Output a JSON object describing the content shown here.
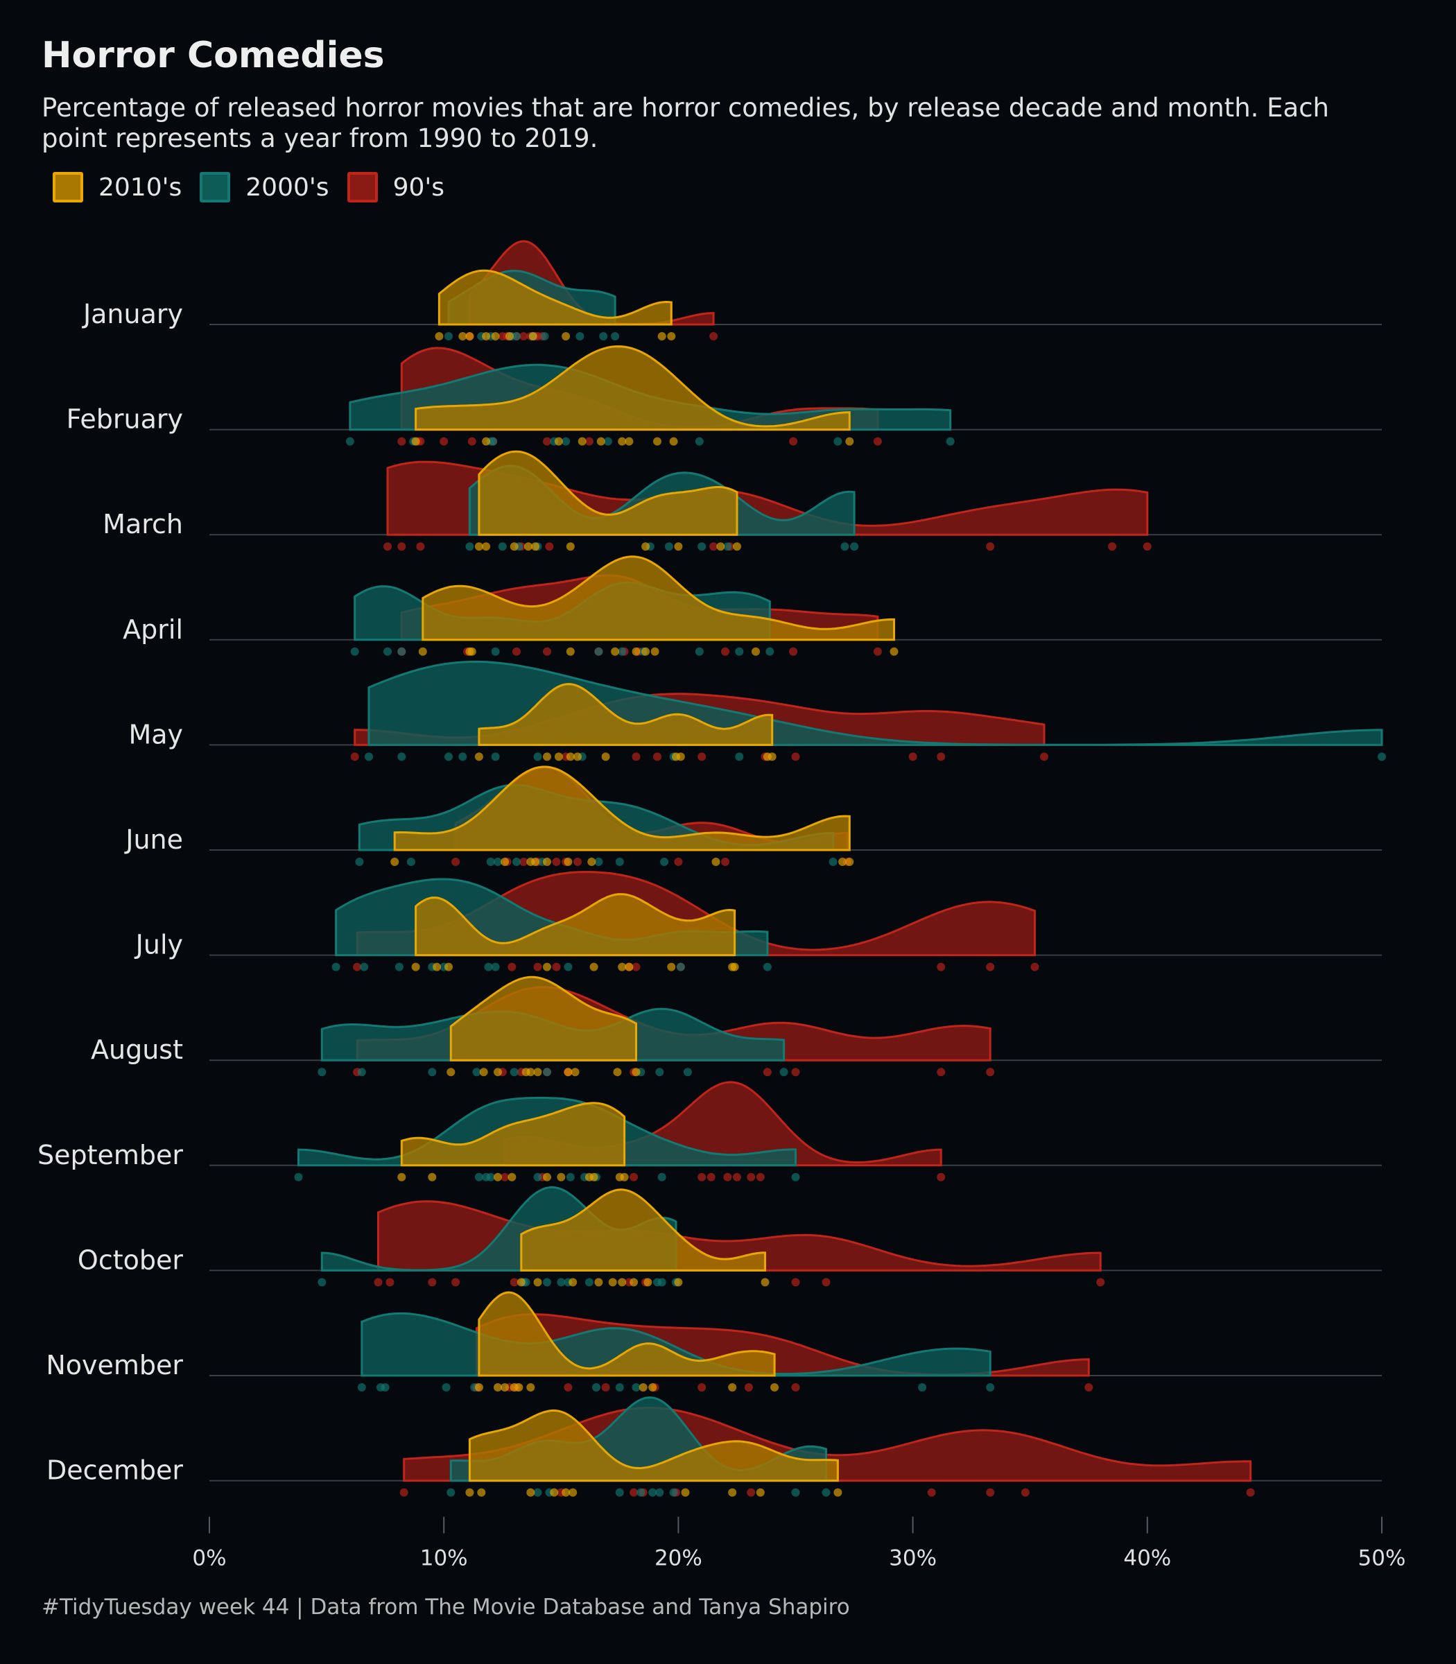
{
  "title": "Horror Comedies",
  "subtitle": "Percentage of released horror movies that are horror comedies, by release decade and month. Each point represents a year from 1990 to 2019.",
  "caption": "#TidyTuesday week 44 | Data from The Movie Database and Tanya Shapiro",
  "legend": [
    {
      "label": "2010's",
      "fill": "#a87800",
      "stroke": "#e8a800"
    },
    {
      "label": "2000's",
      "fill": "#0e5c58",
      "stroke": "#137a73"
    },
    {
      "label": "90's",
      "fill": "#8a1a14",
      "stroke": "#c0241a"
    }
  ],
  "chart_data": {
    "type": "ridgeline",
    "title": "Horror Comedies",
    "subtitle": "Percentage of released horror movies that are horror comedies, by release decade and month. Each point represents a year from 1990 to 2019.",
    "xlim": [
      0,
      50
    ],
    "x_ticks": [
      0,
      10,
      20,
      30,
      40,
      50
    ],
    "x_tick_labels": [
      "0%",
      "10%",
      "20%",
      "30%",
      "40%",
      "50%"
    ],
    "categories": [
      "January",
      "February",
      "March",
      "April",
      "May",
      "June",
      "July",
      "August",
      "September",
      "October",
      "November",
      "December"
    ],
    "series": [
      {
        "name": "2010's",
        "color": "#e8a800",
        "values": {
          "January": [
            9.8,
            10.8,
            11.1,
            11.8,
            12.2,
            12.8,
            13.8,
            15.2,
            19.3,
            19.7
          ],
          "February": [
            8.8,
            11.8,
            14.9,
            15.9,
            16.7,
            17.6,
            17.9,
            19.1,
            19.8,
            27.3
          ],
          "March": [
            11.5,
            11.8,
            13.0,
            13.6,
            13.9,
            15.4,
            18.6,
            20.0,
            21.8,
            22.5
          ],
          "April": [
            9.1,
            11.2,
            15.4,
            17.3,
            18.2,
            18.6,
            19.0,
            23.3,
            29.2,
            11.1
          ],
          "May": [
            11.5,
            14.4,
            14.9,
            15.4,
            15.7,
            19.9,
            20.1,
            23.8,
            24.0,
            16.9
          ],
          "June": [
            7.9,
            12.6,
            13.7,
            13.9,
            14.4,
            15.3,
            16.3,
            21.6,
            27.0,
            27.3
          ],
          "July": [
            8.8,
            9.7,
            10.2,
            14.4,
            16.4,
            17.6,
            17.9,
            19.7,
            22.3,
            22.4
          ],
          "August": [
            10.3,
            11.7,
            12.3,
            13.5,
            13.7,
            14.0,
            15.3,
            15.6,
            17.4,
            18.2
          ],
          "September": [
            8.2,
            9.5,
            12.3,
            12.9,
            14.4,
            15.0,
            16.2,
            16.4,
            17.5,
            17.7
          ],
          "October": [
            13.3,
            14.0,
            15.5,
            16.6,
            17.2,
            17.6,
            18.1,
            18.7,
            20.0,
            23.7
          ],
          "November": [
            11.5,
            12.3,
            12.6,
            13.0,
            13.2,
            13.7,
            18.5,
            18.9,
            22.3,
            24.1
          ],
          "December": [
            11.1,
            11.6,
            13.7,
            14.7,
            15.2,
            15.5,
            20.3,
            22.3,
            23.5,
            26.8
          ]
        }
      },
      {
        "name": "2000's",
        "color": "#137a73",
        "values": {
          "January": [
            10.2,
            13.1,
            13.8,
            14.3,
            15.8,
            16.8,
            17.3,
            11.6,
            12.0,
            12.9
          ],
          "February": [
            6.0,
            12.1,
            14.7,
            20.9,
            26.8,
            31.6,
            15.2,
            17.0,
            8.7,
            12.0
          ],
          "March": [
            11.1,
            13.2,
            19.6,
            21.0,
            22.1,
            27.1,
            27.5,
            12.5,
            14.0,
            18.8
          ],
          "April": [
            6.2,
            7.6,
            8.2,
            12.2,
            17.6,
            20.9,
            22.6,
            23.9,
            18.5,
            16.6
          ],
          "May": [
            6.8,
            8.2,
            10.2,
            10.8,
            14.0,
            22.6,
            50.0,
            12.2,
            15.9,
            19.8
          ],
          "June": [
            6.4,
            8.6,
            12.0,
            12.3,
            13.1,
            14.2,
            16.6,
            17.5,
            26.6,
            19.4
          ],
          "July": [
            5.4,
            6.6,
            8.1,
            9.5,
            11.9,
            15.3,
            20.1,
            23.8,
            12.2,
            10.0
          ],
          "August": [
            4.8,
            6.5,
            9.5,
            11.4,
            14.4,
            18.4,
            19.2,
            20.4,
            24.5,
            13.0
          ],
          "September": [
            3.8,
            11.5,
            11.8,
            14.0,
            15.4,
            16.0,
            19.3,
            25.0,
            16.5,
            12.0
          ],
          "October": [
            4.8,
            13.5,
            14.4,
            15.0,
            15.3,
            19.1,
            19.3,
            19.9,
            13.4,
            16.2
          ],
          "November": [
            6.5,
            7.3,
            7.5,
            10.1,
            11.3,
            16.5,
            17.5,
            30.4,
            33.3,
            18.2
          ],
          "December": [
            10.3,
            14.5,
            17.5,
            18.4,
            18.9,
            19.2,
            19.8,
            25.0,
            26.3,
            14.0
          ]
        }
      },
      {
        "name": "90's",
        "color": "#c0241a",
        "values": {
          "January": [
            13.4,
            13.9,
            14.2,
            21.5,
            11.1,
            12.7,
            13.1,
            14.0,
            12.5,
            13.7
          ],
          "February": [
            8.2,
            9.0,
            10.0,
            11.2,
            14.4,
            24.9,
            28.5,
            8.9,
            12.1,
            16.2
          ],
          "March": [
            7.6,
            8.2,
            9.0,
            14.5,
            33.3,
            38.5,
            40.0,
            13.3,
            21.5,
            22.2
          ],
          "April": [
            8.2,
            11.0,
            16.6,
            17.7,
            24.9,
            28.5,
            18.3,
            13.1,
            14.4,
            22.0
          ],
          "May": [
            6.2,
            18.2,
            19.1,
            21.0,
            25.0,
            30.0,
            31.2,
            35.6,
            15.2,
            23.7
          ],
          "June": [
            10.5,
            13.4,
            14.0,
            14.8,
            15.2,
            20.0,
            27.2,
            12.7,
            15.7,
            22.0
          ],
          "July": [
            6.3,
            14.0,
            14.8,
            18.2,
            31.2,
            33.3,
            35.2,
            17.9,
            12.9,
            20.1
          ],
          "August": [
            6.3,
            12.5,
            14.4,
            18.1,
            23.8,
            25.0,
            31.2,
            33.3,
            13.3,
            15.3
          ],
          "September": [
            12.6,
            21.0,
            21.4,
            22.1,
            22.5,
            23.1,
            23.5,
            31.2,
            14.2,
            18.1
          ],
          "October": [
            7.2,
            7.7,
            9.5,
            10.5,
            17.9,
            25.0,
            26.3,
            38.0,
            13.0,
            18.6
          ],
          "November": [
            11.4,
            15.3,
            21.0,
            25.0,
            37.5,
            12.8,
            13.1,
            19.0,
            23.0,
            16.9
          ],
          "December": [
            8.3,
            18.1,
            18.5,
            23.1,
            30.8,
            33.3,
            34.8,
            44.4,
            19.9,
            15.0
          ]
        }
      }
    ]
  }
}
